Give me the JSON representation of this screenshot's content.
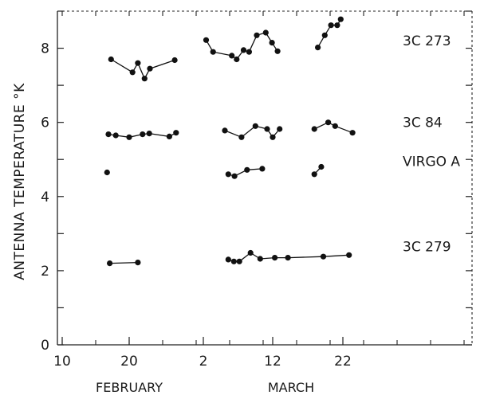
{
  "chart_data": {
    "type": "line",
    "title": "",
    "ylabel": "ANTENNA TEMPERATURE °K",
    "xlabel": "",
    "x_tick_labels": [
      "10",
      "20",
      "2",
      "12",
      "22"
    ],
    "month_labels": [
      "FEBRUARY",
      "MARCH"
    ],
    "y_ticks": [
      0,
      2,
      4,
      6,
      8
    ],
    "ylim": [
      0,
      9
    ],
    "grid": false,
    "series": [
      {
        "name": "3C 273",
        "segments": [
          [
            [
              17.3,
              7.7
            ],
            [
              20.5,
              7.35
            ],
            [
              21.3,
              7.6
            ],
            [
              22.3,
              7.18
            ],
            [
              23.1,
              7.45
            ],
            [
              26.8,
              7.68
            ]
          ],
          [
            [
              2.4,
              8.22
            ],
            [
              3.4,
              7.9
            ],
            [
              6.1,
              7.8
            ],
            [
              6.8,
              7.7
            ],
            [
              7.8,
              7.95
            ],
            [
              8.6,
              7.9
            ],
            [
              9.7,
              8.35
            ],
            [
              11.0,
              8.42
            ],
            [
              11.9,
              8.15
            ],
            [
              12.7,
              7.92
            ]
          ],
          [
            [
              18.5,
              8.02
            ],
            [
              19.5,
              8.35
            ],
            [
              20.4,
              8.62
            ],
            [
              21.3,
              8.62
            ],
            [
              21.8,
              8.78
            ]
          ]
        ]
      },
      {
        "name": "3C 84",
        "segments": [
          [
            [
              16.9,
              5.68
            ],
            [
              18.0,
              5.65
            ],
            [
              20.0,
              5.6
            ],
            [
              22.0,
              5.68
            ],
            [
              23.0,
              5.7
            ],
            [
              26.0,
              5.62
            ],
            [
              27.0,
              5.72
            ]
          ],
          [
            [
              5.1,
              5.78
            ],
            [
              7.5,
              5.6
            ],
            [
              9.5,
              5.9
            ],
            [
              11.2,
              5.82
            ],
            [
              12.0,
              5.6
            ],
            [
              13.0,
              5.82
            ]
          ],
          [
            [
              18.0,
              5.82
            ],
            [
              20.0,
              6.0
            ],
            [
              21.0,
              5.9
            ],
            [
              23.5,
              5.72
            ]
          ]
        ]
      },
      {
        "name": "VIRGO A",
        "segments": [
          [
            [
              16.7,
              4.65
            ]
          ],
          [
            [
              5.6,
              4.6
            ],
            [
              6.5,
              4.55
            ],
            [
              8.3,
              4.72
            ],
            [
              10.5,
              4.75
            ]
          ],
          [
            [
              18.0,
              4.6
            ],
            [
              19.0,
              4.8
            ]
          ]
        ]
      },
      {
        "name": "3C 279",
        "segments": [
          [
            [
              17.1,
              2.2
            ],
            [
              21.3,
              2.22
            ]
          ],
          [
            [
              5.6,
              2.3
            ],
            [
              6.4,
              2.25
            ],
            [
              7.2,
              2.25
            ],
            [
              8.8,
              2.48
            ],
            [
              10.2,
              2.32
            ],
            [
              12.3,
              2.35
            ],
            [
              14.2,
              2.35
            ],
            [
              19.3,
              2.38
            ],
            [
              23.0,
              2.42
            ]
          ]
        ]
      }
    ]
  }
}
